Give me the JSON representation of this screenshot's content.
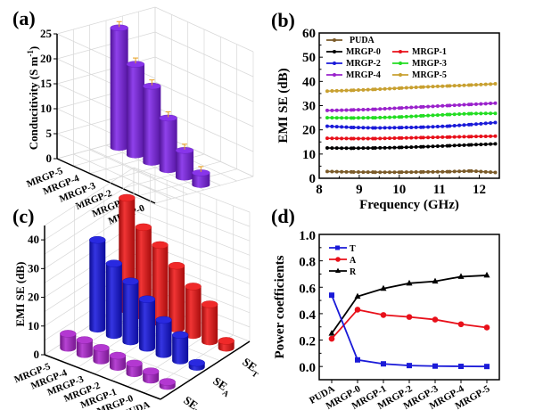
{
  "figure": {
    "panels": [
      "(a)",
      "(b)",
      "(c)",
      "(d)"
    ]
  },
  "chart_data": [
    {
      "panel": "(a)",
      "type": "bar",
      "style": "3d-cylinder",
      "title": "",
      "ylabel": "Conductivity (S m-1)",
      "ylabel_parts": {
        "main": "Conducitivity (S m",
        "sup": "-1",
        "tail": ")"
      },
      "xlabel": "",
      "ylim": [
        0,
        25
      ],
      "yticks": [
        "0",
        "5",
        "10",
        "15",
        "20",
        "25"
      ],
      "categories": [
        "MRGP-5",
        "MRGP-4",
        "MRGP-3",
        "MRGP-2",
        "MRGP-1",
        "MRGP-0"
      ],
      "values": [
        24,
        18.2,
        15.3,
        10.4,
        5.4,
        2.4
      ],
      "error_bars": true,
      "color": "#7b1fe8",
      "error_color": "#e8a020"
    },
    {
      "panel": "(b)",
      "type": "line",
      "title": "",
      "xlabel": "Frequency (GHz)",
      "ylabel": "EMI SE (dB)",
      "xlim": [
        8,
        12.5
      ],
      "ylim": [
        0,
        60
      ],
      "xticks": [
        "8",
        "9",
        "10",
        "11",
        "12"
      ],
      "yticks": [
        "0",
        "10",
        "20",
        "30",
        "40",
        "50",
        "60"
      ],
      "legend": "top-left",
      "x": [
        8.2,
        8.8,
        9.4,
        10.0,
        10.6,
        11.2,
        11.8,
        12.4
      ],
      "series": [
        {
          "name": "PUDA",
          "color": "#7a5a28",
          "marker": "diamond",
          "values": [
            2.8,
            2.6,
            2.5,
            2.5,
            2.6,
            2.7,
            3.0,
            2.4
          ]
        },
        {
          "name": "MRGP-0",
          "color": "#000000",
          "marker": "square",
          "values": [
            12.5,
            12.4,
            12.5,
            12.7,
            13.0,
            13.4,
            13.8,
            14.2
          ]
        },
        {
          "name": "MRGP-1",
          "color": "#e8101a",
          "marker": "circle",
          "values": [
            16.5,
            16.4,
            16.4,
            16.6,
            16.8,
            17.0,
            17.2,
            17.4
          ]
        },
        {
          "name": "MRGP-2",
          "color": "#1a1ad8",
          "marker": "triangle",
          "values": [
            21.5,
            21.0,
            20.8,
            20.9,
            21.1,
            21.5,
            22.2,
            23.0
          ]
        },
        {
          "name": "MRGP-3",
          "color": "#22dd22",
          "marker": "tri-down",
          "values": [
            25.0,
            24.9,
            25.0,
            25.3,
            25.8,
            26.3,
            26.7,
            26.8
          ]
        },
        {
          "name": "MRGP-4",
          "color": "#9a22cc",
          "marker": "tri-left",
          "values": [
            28.0,
            28.2,
            28.5,
            29.0,
            29.5,
            30.0,
            30.5,
            31.0
          ]
        },
        {
          "name": "MRGP-5",
          "color": "#c8a030",
          "marker": "tri-right",
          "values": [
            36.0,
            36.3,
            36.7,
            37.2,
            37.7,
            38.1,
            38.5,
            39.0
          ]
        }
      ]
    },
    {
      "panel": "(c)",
      "type": "bar",
      "style": "3d-cylinder",
      "title": "",
      "zlabel": "EMI SE (dB)",
      "zlim": [
        0,
        45
      ],
      "zticks": [
        "0",
        "10",
        "20",
        "30",
        "40"
      ],
      "categories": [
        "MRGP-5",
        "MRGP-4",
        "MRGP-3",
        "MRGP-2",
        "MRGP-1",
        "MRGP-0",
        "PUDA"
      ],
      "depth_labels": [
        {
          "main": "SE",
          "sub": "T"
        },
        {
          "main": "SE",
          "sub": "A"
        },
        {
          "main": "SE",
          "sub": "R"
        }
      ],
      "series": [
        {
          "name": "SE_T",
          "color": "#ee1111",
          "values": [
            39,
            31,
            27,
            22,
            17,
            13,
            2.5
          ]
        },
        {
          "name": "SE_A",
          "color": "#1111dd",
          "values": [
            31,
            25,
            21,
            17,
            12,
            9,
            1.5
          ]
        },
        {
          "name": "SE_R",
          "color": "#aa22cc",
          "values": [
            5,
            5,
            4.5,
            4,
            3.5,
            3,
            1.5
          ]
        }
      ]
    },
    {
      "panel": "(d)",
      "type": "line",
      "title": "",
      "xlabel": "",
      "ylabel": "Power coefficients",
      "ylim": [
        -0.1,
        1.0
      ],
      "yticks": [
        "0.0",
        "0.2",
        "0.4",
        "0.6",
        "0.8",
        "1.0"
      ],
      "categories": [
        "PUDA",
        "MRGP-0",
        "MRGP-1",
        "MRGP-2",
        "MRGP-3",
        "MRGP-4",
        "MRGP-5"
      ],
      "legend": "top-left",
      "series": [
        {
          "name": "T",
          "color": "#1a1ad8",
          "marker": "square",
          "values": [
            0.54,
            0.05,
            0.02,
            0.007,
            0.003,
            0.001,
            0.0
          ]
        },
        {
          "name": "A",
          "color": "#e8101a",
          "marker": "circle",
          "values": [
            0.21,
            0.43,
            0.39,
            0.375,
            0.355,
            0.32,
            0.295
          ]
        },
        {
          "name": "R",
          "color": "#000000",
          "marker": "triangle",
          "values": [
            0.25,
            0.53,
            0.59,
            0.63,
            0.645,
            0.68,
            0.69
          ]
        }
      ]
    }
  ]
}
